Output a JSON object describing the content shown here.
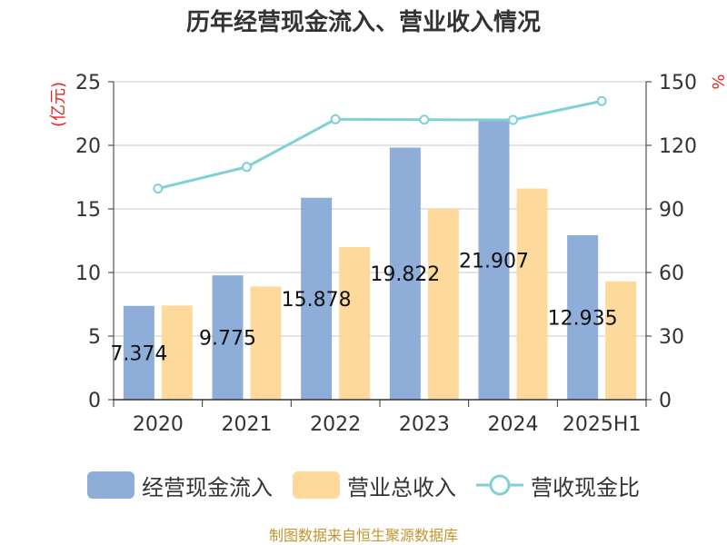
{
  "source_note": "制图数据来自恒生聚源数据库",
  "colors": {
    "cashflow": "#8eadd9",
    "revenue": "#fdd99b",
    "ratio": "#7fd1d6",
    "axis_unit": "#e0281e",
    "grid": "#c8c8c8",
    "text": "#333333"
  },
  "chart_data": {
    "type": "bar",
    "title": "历年经营现金流入、营业收入情况",
    "categories": [
      "2020",
      "2021",
      "2022",
      "2023",
      "2024",
      "2025H1"
    ],
    "series": [
      {
        "name": "经营现金流入",
        "type": "bar",
        "axis": "left",
        "values": [
          7.374,
          9.775,
          15.878,
          19.822,
          21.907,
          12.935
        ],
        "labels": [
          "7.374",
          "9.775",
          "15.878",
          "19.822",
          "21.907",
          "12.935"
        ]
      },
      {
        "name": "营业总收入",
        "type": "bar",
        "axis": "left",
        "values": [
          7.4,
          8.9,
          12.0,
          15.0,
          16.6,
          9.3
        ]
      },
      {
        "name": "营收现金比",
        "type": "line",
        "axis": "right",
        "values": [
          99.6,
          109.8,
          132.3,
          132.1,
          132.0,
          140.9
        ]
      }
    ],
    "ylabel": "(亿元)",
    "y2label": "%",
    "ylim": [
      0,
      25
    ],
    "y2lim": [
      0,
      150
    ],
    "yticks": [
      "0",
      "5",
      "10",
      "15",
      "20",
      "25"
    ],
    "y2ticks": [
      "0",
      "30",
      "60",
      "90",
      "120",
      "150"
    ],
    "grid": true,
    "legend_position": "bottom"
  }
}
